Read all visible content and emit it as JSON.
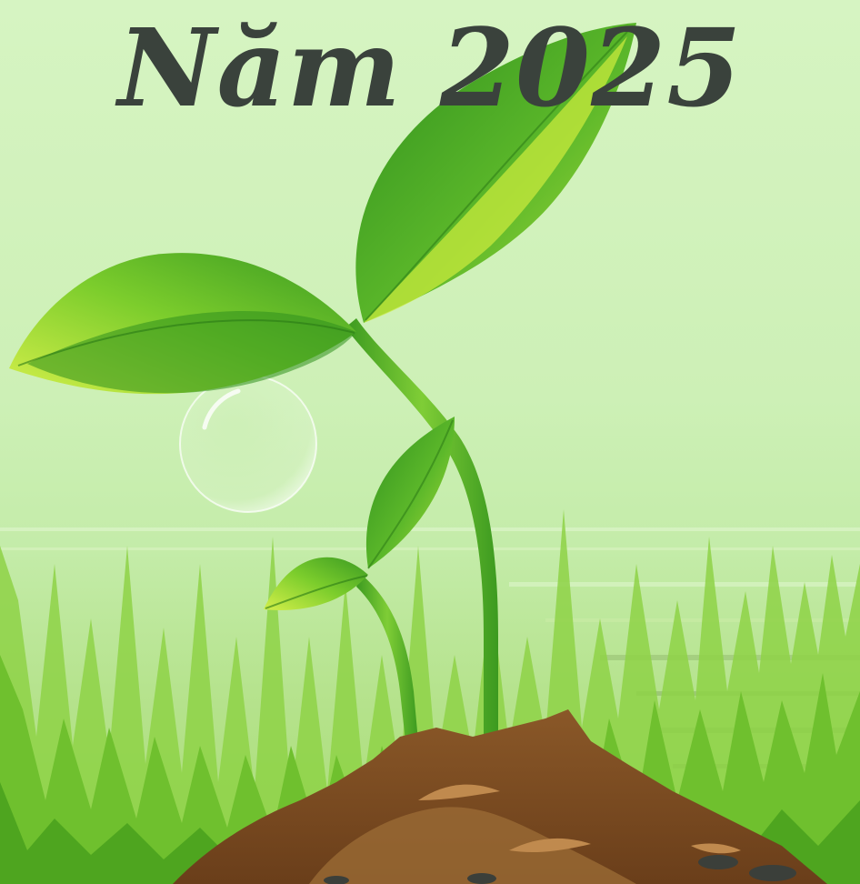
{
  "title": "Năm 2025",
  "colors": {
    "sky_top": "#d6f4c2",
    "sky_bottom": "#a8dc72",
    "title_text": "#3a423c",
    "leaf_dark": "#2f8f1e",
    "leaf_light": "#b4e03a",
    "soil": "#7a4a22"
  },
  "icons": [
    "seedling-illustration",
    "water-bubble",
    "grass-field",
    "soil-mound"
  ]
}
